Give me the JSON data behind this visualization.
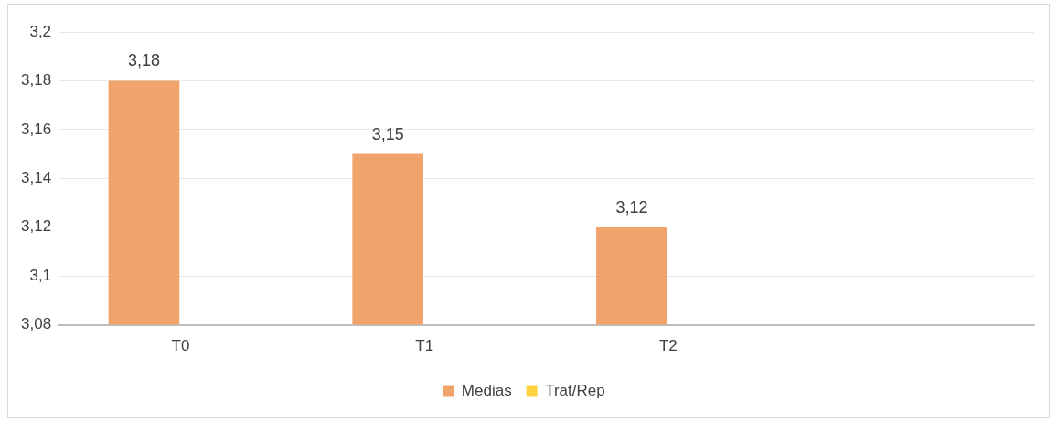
{
  "chart_data": {
    "type": "bar",
    "categories": [
      "T0",
      "T1",
      "T2",
      null
    ],
    "series": [
      {
        "name": "Medias",
        "color": "#f0a46c",
        "values": [
          3.18,
          3.15,
          3.12,
          null
        ],
        "value_labels": [
          "3,18",
          "3,15",
          "3,12",
          null
        ]
      },
      {
        "name": "Trat/Rep",
        "color": "#ffd23f",
        "values": [
          null,
          null,
          null,
          null
        ]
      }
    ],
    "ylim": [
      3.08,
      3.2
    ],
    "yticks": [
      {
        "value": 3.08,
        "label": "3,08"
      },
      {
        "value": 3.1,
        "label": "3,1"
      },
      {
        "value": 3.12,
        "label": "3,12"
      },
      {
        "value": 3.14,
        "label": "3,14"
      },
      {
        "value": 3.16,
        "label": "3,16"
      },
      {
        "value": 3.18,
        "label": "3,18"
      },
      {
        "value": 3.2,
        "label": "3,2"
      }
    ],
    "grid": "y",
    "legend": "bottom"
  }
}
